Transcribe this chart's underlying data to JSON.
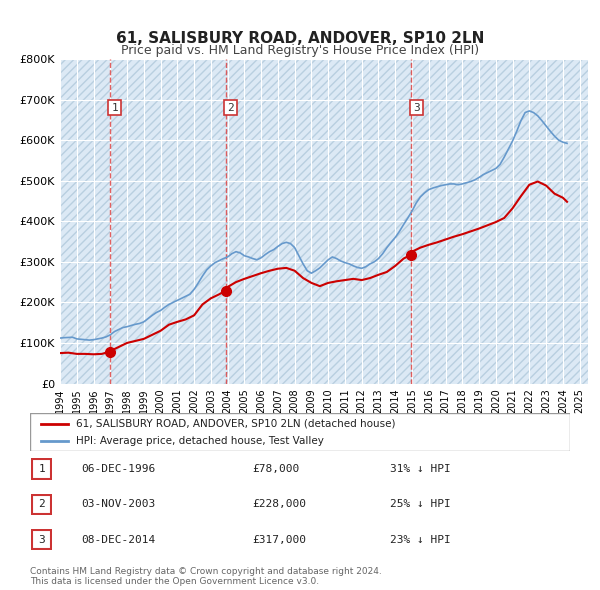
{
  "title": "61, SALISBURY ROAD, ANDOVER, SP10 2LN",
  "subtitle": "Price paid vs. HM Land Registry's House Price Index (HPI)",
  "legend_line1": "61, SALISBURY ROAD, ANDOVER, SP10 2LN (detached house)",
  "legend_line2": "HPI: Average price, detached house, Test Valley",
  "footer1": "Contains HM Land Registry data © Crown copyright and database right 2024.",
  "footer2": "This data is licensed under the Open Government Licence v3.0.",
  "transactions": [
    {
      "num": 1,
      "date": "1996-12-06",
      "price": 78000,
      "pct": "31% ↓ HPI"
    },
    {
      "num": 2,
      "date": "2003-11-03",
      "price": 228000,
      "pct": "25% ↓ HPI"
    },
    {
      "num": 3,
      "date": "2014-12-08",
      "price": 317000,
      "pct": "23% ↓ HPI"
    }
  ],
  "price_color": "#cc0000",
  "hpi_color": "#6699cc",
  "bg_color": "#dce9f5",
  "hatch_color": "#c0d0e8",
  "grid_color": "#ffffff",
  "vline_color": "#dd4444",
  "dot_color": "#cc0000",
  "ylim": [
    0,
    800000
  ],
  "yticks": [
    0,
    100000,
    200000,
    300000,
    400000,
    500000,
    600000,
    700000,
    800000
  ],
  "ytick_labels": [
    "£0",
    "£100K",
    "£200K",
    "£300K",
    "£400K",
    "£500K",
    "£600K",
    "£700K",
    "£800K"
  ],
  "hpi_data": {
    "years": [
      1994,
      1994.25,
      1994.5,
      1994.75,
      1995,
      1995.25,
      1995.5,
      1995.75,
      1996,
      1996.25,
      1996.5,
      1996.75,
      1997,
      1997.25,
      1997.5,
      1997.75,
      1998,
      1998.25,
      1998.5,
      1998.75,
      1999,
      1999.25,
      1999.5,
      1999.75,
      2000,
      2000.25,
      2000.5,
      2000.75,
      2001,
      2001.25,
      2001.5,
      2001.75,
      2002,
      2002.25,
      2002.5,
      2002.75,
      2003,
      2003.25,
      2003.5,
      2003.75,
      2004,
      2004.25,
      2004.5,
      2004.75,
      2005,
      2005.25,
      2005.5,
      2005.75,
      2006,
      2006.25,
      2006.5,
      2006.75,
      2007,
      2007.25,
      2007.5,
      2007.75,
      2008,
      2008.25,
      2008.5,
      2008.75,
      2009,
      2009.25,
      2009.5,
      2009.75,
      2010,
      2010.25,
      2010.5,
      2010.75,
      2011,
      2011.25,
      2011.5,
      2011.75,
      2012,
      2012.25,
      2012.5,
      2012.75,
      2013,
      2013.25,
      2013.5,
      2013.75,
      2014,
      2014.25,
      2014.5,
      2014.75,
      2015,
      2015.25,
      2015.5,
      2015.75,
      2016,
      2016.25,
      2016.5,
      2016.75,
      2017,
      2017.25,
      2017.5,
      2017.75,
      2018,
      2018.25,
      2018.5,
      2018.75,
      2019,
      2019.25,
      2019.5,
      2019.75,
      2020,
      2020.25,
      2020.5,
      2020.75,
      2021,
      2021.25,
      2021.5,
      2021.75,
      2022,
      2022.25,
      2022.5,
      2022.75,
      2023,
      2023.25,
      2023.5,
      2023.75,
      2024,
      2024.25
    ],
    "values": [
      112000,
      113000,
      113500,
      114000,
      110000,
      109000,
      108000,
      107000,
      108000,
      110000,
      112000,
      115000,
      120000,
      128000,
      133000,
      138000,
      140000,
      143000,
      146000,
      148000,
      152000,
      160000,
      168000,
      175000,
      180000,
      188000,
      195000,
      200000,
      205000,
      210000,
      215000,
      220000,
      232000,
      248000,
      265000,
      280000,
      290000,
      298000,
      303000,
      308000,
      312000,
      320000,
      325000,
      322000,
      315000,
      312000,
      308000,
      305000,
      310000,
      318000,
      325000,
      330000,
      338000,
      345000,
      348000,
      345000,
      335000,
      315000,
      295000,
      278000,
      272000,
      278000,
      285000,
      295000,
      305000,
      312000,
      308000,
      302000,
      298000,
      295000,
      290000,
      286000,
      284000,
      288000,
      295000,
      300000,
      308000,
      320000,
      335000,
      348000,
      360000,
      375000,
      392000,
      408000,
      425000,
      445000,
      460000,
      470000,
      478000,
      482000,
      485000,
      488000,
      490000,
      492000,
      492000,
      490000,
      492000,
      495000,
      498000,
      502000,
      508000,
      515000,
      520000,
      525000,
      530000,
      540000,
      558000,
      578000,
      598000,
      622000,
      648000,
      668000,
      672000,
      668000,
      660000,
      648000,
      635000,
      622000,
      610000,
      600000,
      595000,
      592000
    ]
  },
  "price_data": {
    "years": [
      1994,
      1994.5,
      1995,
      1995.5,
      1996,
      1996.5,
      1996.917,
      1997,
      1997.5,
      1998,
      1998.5,
      1999,
      1999.5,
      2000,
      2000.5,
      2001,
      2001.5,
      2002,
      2002.5,
      2003,
      2003.5,
      2003.833,
      2004,
      2004.5,
      2005,
      2005.5,
      2006,
      2006.5,
      2007,
      2007.5,
      2008,
      2008.5,
      2009,
      2009.5,
      2010,
      2010.5,
      2011,
      2011.5,
      2012,
      2012.5,
      2013,
      2013.5,
      2014,
      2014.5,
      2014.917,
      2015,
      2015.5,
      2016,
      2016.5,
      2017,
      2017.5,
      2018,
      2018.5,
      2019,
      2019.5,
      2020,
      2020.5,
      2021,
      2021.5,
      2022,
      2022.5,
      2023,
      2023.5,
      2024,
      2024.25
    ],
    "values": [
      75000,
      76000,
      73000,
      73000,
      72000,
      73000,
      78000,
      80000,
      90000,
      100000,
      105000,
      110000,
      120000,
      130000,
      145000,
      152000,
      158000,
      168000,
      195000,
      210000,
      220000,
      228000,
      238000,
      250000,
      258000,
      265000,
      272000,
      278000,
      283000,
      285000,
      278000,
      260000,
      248000,
      240000,
      248000,
      252000,
      255000,
      258000,
      255000,
      260000,
      268000,
      275000,
      290000,
      308000,
      317000,
      325000,
      335000,
      342000,
      348000,
      355000,
      362000,
      368000,
      375000,
      382000,
      390000,
      398000,
      408000,
      432000,
      462000,
      490000,
      498000,
      488000,
      468000,
      458000,
      448000
    ]
  }
}
